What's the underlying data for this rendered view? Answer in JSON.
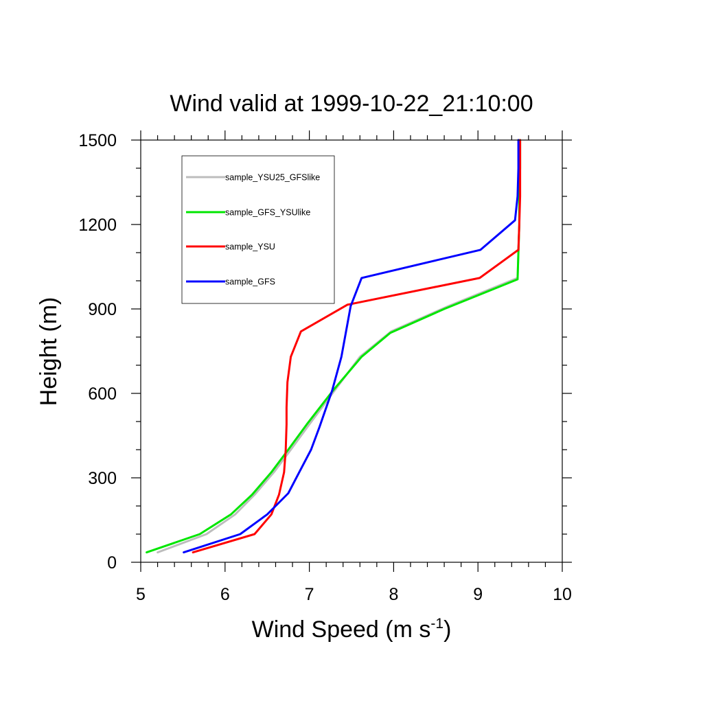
{
  "chart_data": {
    "type": "line",
    "title": "Wind valid at 1999-10-22_21:10:00",
    "xlabel": "Wind Speed (m s",
    "xlabel_sup": "-1",
    "xlabel_end": ")",
    "ylabel": "Height (m)",
    "xlim": [
      5,
      10
    ],
    "ylim": [
      0,
      1500
    ],
    "xticks": [
      5,
      6,
      7,
      8,
      9,
      10
    ],
    "yticks": [
      0,
      300,
      600,
      900,
      1200,
      1500
    ],
    "xtick_labels": [
      "5",
      "6",
      "7",
      "8",
      "9",
      "10"
    ],
    "ytick_labels": [
      "0",
      "300",
      "600",
      "900",
      "1200",
      "1500"
    ],
    "x_minor_step": 0.2,
    "y_minor_step": 100,
    "grid": false,
    "legend_position": "top-left",
    "series": [
      {
        "name": "sample_YSU25_GFSlike",
        "color": "#bdbdbd",
        "points": [
          [
            5.2,
            35
          ],
          [
            5.78,
            100
          ],
          [
            6.12,
            170
          ],
          [
            6.35,
            240
          ],
          [
            6.58,
            320
          ],
          [
            6.78,
            400
          ],
          [
            7.0,
            490
          ],
          [
            7.3,
            610
          ],
          [
            7.6,
            730
          ],
          [
            7.97,
            820
          ],
          [
            8.65,
            910
          ],
          [
            9.47,
            1010
          ],
          [
            9.48,
            1100
          ],
          [
            9.49,
            1200
          ],
          [
            9.49,
            1300
          ],
          [
            9.49,
            1400
          ],
          [
            9.49,
            1500
          ]
        ]
      },
      {
        "name": "sample_GFS_YSUlike",
        "color": "#00e600",
        "points": [
          [
            5.07,
            35
          ],
          [
            5.7,
            100
          ],
          [
            6.07,
            170
          ],
          [
            6.32,
            240
          ],
          [
            6.55,
            320
          ],
          [
            6.75,
            400
          ],
          [
            6.97,
            490
          ],
          [
            7.28,
            610
          ],
          [
            7.62,
            730
          ],
          [
            7.96,
            815
          ],
          [
            8.6,
            900
          ],
          [
            9.47,
            1005
          ],
          [
            9.48,
            1100
          ],
          [
            9.49,
            1200
          ],
          [
            9.49,
            1300
          ],
          [
            9.5,
            1400
          ],
          [
            9.5,
            1500
          ]
        ]
      },
      {
        "name": "sample_YSU",
        "color": "#ff0000",
        "points": [
          [
            5.62,
            35
          ],
          [
            6.35,
            100
          ],
          [
            6.55,
            170
          ],
          [
            6.64,
            240
          ],
          [
            6.7,
            320
          ],
          [
            6.72,
            400
          ],
          [
            6.73,
            490
          ],
          [
            6.73,
            550
          ],
          [
            6.74,
            640
          ],
          [
            6.78,
            730
          ],
          [
            6.9,
            820
          ],
          [
            7.45,
            915
          ],
          [
            9.02,
            1010
          ],
          [
            9.48,
            1110
          ],
          [
            9.49,
            1200
          ],
          [
            9.5,
            1300
          ],
          [
            9.5,
            1400
          ],
          [
            9.5,
            1500
          ]
        ]
      },
      {
        "name": "sample_GFS",
        "color": "#0000ff",
        "points": [
          [
            5.51,
            35
          ],
          [
            6.18,
            100
          ],
          [
            6.5,
            170
          ],
          [
            6.75,
            245
          ],
          [
            6.88,
            320
          ],
          [
            7.02,
            400
          ],
          [
            7.12,
            480
          ],
          [
            7.27,
            610
          ],
          [
            7.38,
            730
          ],
          [
            7.49,
            910
          ],
          [
            7.62,
            1010
          ],
          [
            9.03,
            1110
          ],
          [
            9.44,
            1215
          ],
          [
            9.47,
            1300
          ],
          [
            9.48,
            1400
          ],
          [
            9.48,
            1500
          ]
        ]
      }
    ]
  }
}
